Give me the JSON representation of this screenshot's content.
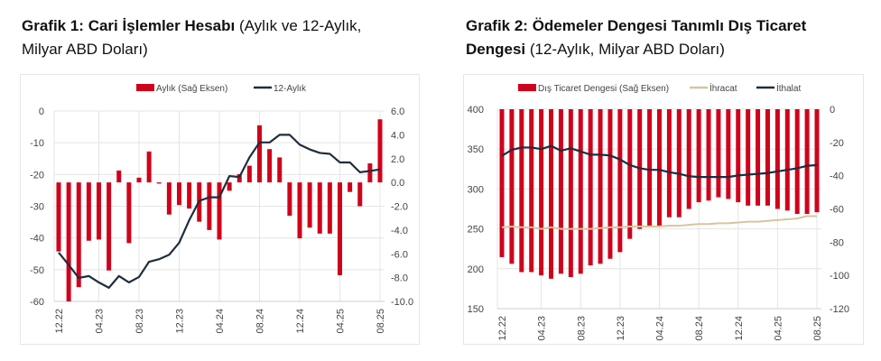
{
  "chart_data": [
    {
      "type": "bar+line",
      "title": "Grafik 1: Cari İşlemler Hesabı",
      "subtitle": "(Aylık ve 12-Aylık, Milyar ABD Doları)",
      "x_tick_labels": [
        "12.22",
        "04.23",
        "08.23",
        "12.23",
        "04.24",
        "08.24",
        "12.24",
        "04.25",
        "08.25"
      ],
      "months": 33,
      "left_axis": {
        "min": -60,
        "max": 0,
        "ticks": [
          "0",
          "-10",
          "-20",
          "-30",
          "-40",
          "-50",
          "-60"
        ]
      },
      "right_axis": {
        "min": -10,
        "max": 6,
        "ticks": [
          "6.0",
          "4.0",
          "2.0",
          "0.0",
          "-2.0",
          "-4.0",
          "-6.0",
          "-8.0",
          "-10.0"
        ]
      },
      "series": [
        {
          "name": "Aylık (Sağ Eksen)",
          "kind": "bar",
          "axis": "right",
          "color": "#d0021b",
          "values": [
            -5.8,
            -10,
            -8.8,
            -4.9,
            -4.8,
            -7.4,
            1.0,
            -5.1,
            0.4,
            2.6,
            -0.1,
            -2.7,
            -1.9,
            -2.2,
            -3.3,
            -4.0,
            -4.8,
            -0.7,
            0.7,
            1.4,
            4.8,
            2.8,
            2.1,
            -2.8,
            -4.7,
            -3.8,
            -4.3,
            -4.3,
            -7.8,
            -0.8,
            -2.0,
            1.6,
            5.3
          ]
        },
        {
          "name": "12-Aylık",
          "kind": "line",
          "axis": "left",
          "color": "#1f2d3d",
          "values": [
            -44.6,
            -48.5,
            -52.6,
            -52,
            -54,
            -55.7,
            -52,
            -54,
            -52.3,
            -47.5,
            -46.7,
            -45.3,
            -41.5,
            -34.4,
            -28.3,
            -27.2,
            -27.2,
            -20.5,
            -20.8,
            -14.6,
            -9.9,
            -9.9,
            -7.5,
            -7.5,
            -10.6,
            -12.1,
            -13.2,
            -13.5,
            -16.2,
            -16.2,
            -19.3,
            -18.9,
            -18.4
          ]
        }
      ]
    },
    {
      "type": "bar+line",
      "title": "Grafik 2: Ödemeler Dengesi Tanımlı Dış Ticaret Dengesi",
      "subtitle": "(12-Aylık, Milyar ABD Doları)",
      "x_tick_labels": [
        "12.22",
        "04.23",
        "08.23",
        "12.23",
        "04.24",
        "08.24",
        "12.24",
        "04.25",
        "08.25"
      ],
      "months": 33,
      "left_axis": {
        "min": 150,
        "max": 400,
        "ticks": [
          "400",
          "350",
          "300",
          "250",
          "200",
          "150"
        ]
      },
      "right_axis": {
        "min": -120,
        "max": 0,
        "ticks": [
          "0",
          "-20",
          "-40",
          "-60",
          "-80",
          "-100",
          "-120"
        ]
      },
      "series": [
        {
          "name": "Dış Ticaret Dengesi (Sağ Eksen)",
          "kind": "bar",
          "axis": "right",
          "color": "#d0021b",
          "values": [
            -89,
            -93,
            -98,
            -98,
            -100,
            -102,
            -99,
            -101,
            -99,
            -94,
            -93,
            -90,
            -86,
            -78,
            -72,
            -70,
            -70,
            -65,
            -65,
            -60,
            -56,
            -55,
            -53,
            -54,
            -56,
            -58,
            -58,
            -58,
            -60,
            -61,
            -63,
            -63,
            -62
          ]
        },
        {
          "name": "İhracat",
          "kind": "line",
          "axis": "left",
          "color": "#d9c3a0",
          "values": [
            252,
            253,
            252,
            252,
            250,
            252,
            250,
            250,
            250,
            250,
            251,
            252,
            252,
            253,
            253,
            253,
            253,
            254,
            254,
            255,
            256,
            256,
            257,
            257,
            258,
            259,
            259,
            260,
            261,
            262,
            263,
            266,
            266
          ]
        },
        {
          "name": "İthalat",
          "kind": "line",
          "axis": "left",
          "color": "#1f2d3d",
          "values": [
            341.5,
            349,
            352,
            352,
            350,
            354,
            348,
            351,
            347,
            343,
            343,
            342,
            337,
            330,
            326,
            324,
            324,
            321,
            319,
            316,
            315,
            315,
            315,
            315,
            317,
            318,
            319,
            320,
            322,
            324,
            326,
            329,
            330
          ]
        }
      ]
    }
  ]
}
